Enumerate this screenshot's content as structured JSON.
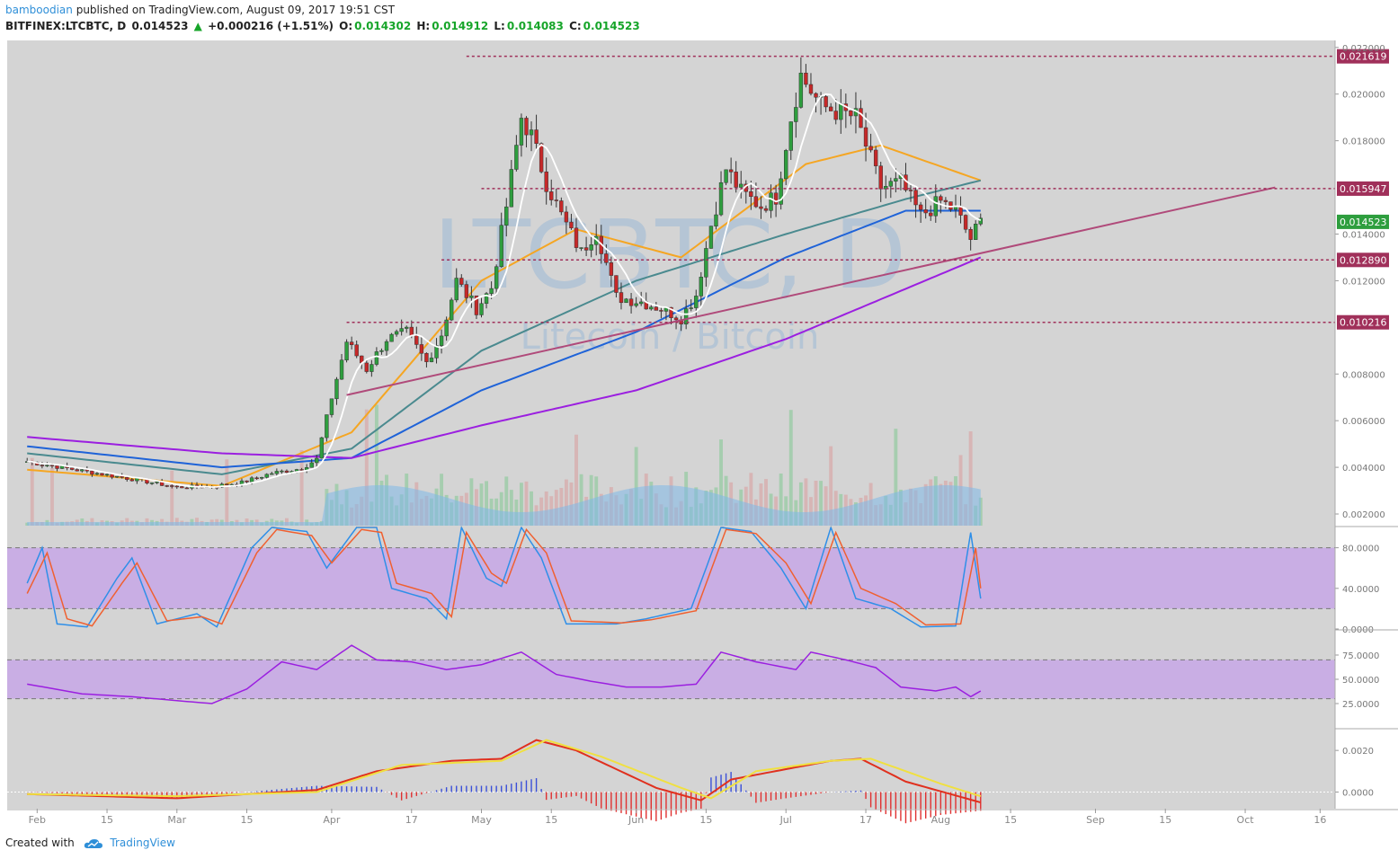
{
  "header": {
    "author": "bamboodian",
    "published_text": "published on TradingView.com, August 09, 2017 19:51 CST",
    "symbol": "BITFINEX:LTCBTC, D",
    "last": "0.014523",
    "change": "+0.000216 (+1.51%)",
    "o_label": "O:",
    "o_value": "0.014302",
    "h_label": "H:",
    "h_value": "0.014912",
    "l_label": "L:",
    "l_value": "0.014083",
    "c_label": "C:",
    "c_value": "0.014523"
  },
  "watermark": {
    "symbol": "LTCBTC, D",
    "name": "Litecoin / Bitcoin"
  },
  "footer": {
    "created_with": "Created with",
    "brand": "TradingView"
  },
  "colors": {
    "bull": "#2e9e3e",
    "bear": "#c62828",
    "sma_white": "#ffffff",
    "ema_orange": "#f5a623",
    "ma_teal": "#4a8a8f",
    "ma_blue": "#1f63d8",
    "ma_purple": "#9b1fe0",
    "trendline": "#b04a7a",
    "hline": "#a0305a",
    "stoch_k": "#2f8fe8",
    "stoch_d": "#f06030",
    "band": "#c7a7e6",
    "volume_ma": "#7db8e8",
    "macd_fast": "#e0301e",
    "macd_slow": "#f0e040"
  },
  "chart_data": [
    {
      "type": "candlestick",
      "title": "",
      "y_scale": "linear",
      "ylim": [
        0.0015,
        0.0223
      ],
      "y_ticks": [
        "0.022000",
        "0.020000",
        "0.018000",
        "0.014000",
        "0.012000",
        "0.008000",
        "0.006000",
        "0.004000",
        "0.002000"
      ],
      "x_ticks": [
        "Feb",
        "15",
        "Mar",
        "15",
        "Apr",
        "17",
        "May",
        "15",
        "Jun",
        "15",
        "Jul",
        "17",
        "Aug",
        "15",
        "Sep",
        "15",
        "Oct",
        "16"
      ],
      "horizontal_levels": [
        "0.021619",
        "0.015947",
        "0.012890",
        "0.010216"
      ],
      "last_price_label": "0.014523",
      "trendline": {
        "from": [
          "2017-04-04",
          0.0071
        ],
        "to": [
          "2017-10-07",
          0.016
        ]
      },
      "ohlc_dates": {
        "start": "2017-01-30",
        "end": "2017-08-09",
        "points": 192
      },
      "close_path_keys": [
        [
          "2017-01-30",
          0.00425
        ],
        [
          "2017-02-10",
          0.00385
        ],
        [
          "2017-02-20",
          0.0035
        ],
        [
          "2017-03-01",
          0.00315
        ],
        [
          "2017-03-08",
          0.00318
        ],
        [
          "2017-03-14",
          0.00335
        ],
        [
          "2017-03-20",
          0.00375
        ],
        [
          "2017-03-26",
          0.00395
        ],
        [
          "2017-03-29",
          0.00435
        ],
        [
          "2017-04-01",
          0.007
        ],
        [
          "2017-04-04",
          0.0094
        ],
        [
          "2017-04-08",
          0.0082
        ],
        [
          "2017-04-12",
          0.0095
        ],
        [
          "2017-04-16",
          0.0098
        ],
        [
          "2017-04-20",
          0.0085
        ],
        [
          "2017-04-23",
          0.0097
        ],
        [
          "2017-04-26",
          0.012
        ],
        [
          "2017-04-30",
          0.0108
        ],
        [
          "2017-05-03",
          0.0117
        ],
        [
          "2017-05-06",
          0.0152
        ],
        [
          "2017-05-09",
          0.019
        ],
        [
          "2017-05-11",
          0.0182
        ],
        [
          "2017-05-14",
          0.0162
        ],
        [
          "2017-05-17",
          0.0148
        ],
        [
          "2017-05-21",
          0.0132
        ],
        [
          "2017-05-24",
          0.0142
        ],
        [
          "2017-05-28",
          0.0113
        ],
        [
          "2017-06-02",
          0.0111
        ],
        [
          "2017-06-06",
          0.0108
        ],
        [
          "2017-06-10",
          0.0104
        ],
        [
          "2017-06-13",
          0.0114
        ],
        [
          "2017-06-16",
          0.0144
        ],
        [
          "2017-06-19",
          0.0168
        ],
        [
          "2017-06-22",
          0.0158
        ],
        [
          "2017-06-26",
          0.0152
        ],
        [
          "2017-06-29",
          0.0156
        ],
        [
          "2017-07-02",
          0.019
        ],
        [
          "2017-07-04",
          0.0208
        ],
        [
          "2017-07-08",
          0.0195
        ],
        [
          "2017-07-12",
          0.0192
        ],
        [
          "2017-07-15",
          0.019
        ],
        [
          "2017-07-17",
          0.0178
        ],
        [
          "2017-07-20",
          0.016
        ],
        [
          "2017-07-24",
          0.0162
        ],
        [
          "2017-07-28",
          0.0148
        ],
        [
          "2017-08-01",
          0.0154
        ],
        [
          "2017-08-04",
          0.015
        ],
        [
          "2017-08-07",
          0.0138
        ],
        [
          "2017-08-09",
          0.01452
        ]
      ],
      "ma_series": [
        {
          "name": "",
          "color_key": "ema_orange",
          "keys": [
            [
              "2017-01-30",
              0.0039
            ],
            [
              "2017-03-10",
              0.0032
            ],
            [
              "2017-04-05",
              0.0055
            ],
            [
              "2017-05-01",
              0.012
            ],
            [
              "2017-05-20",
              0.0142
            ],
            [
              "2017-06-10",
              0.013
            ],
            [
              "2017-07-05",
              0.017
            ],
            [
              "2017-07-20",
              0.0178
            ],
            [
              "2017-08-09",
              0.0163
            ]
          ]
        },
        {
          "name": "",
          "color_key": "ma_teal",
          "keys": [
            [
              "2017-01-30",
              0.0046
            ],
            [
              "2017-03-10",
              0.0037
            ],
            [
              "2017-04-05",
              0.0048
            ],
            [
              "2017-05-01",
              0.009
            ],
            [
              "2017-06-01",
              0.012
            ],
            [
              "2017-07-01",
              0.014
            ],
            [
              "2017-07-25",
              0.0155
            ],
            [
              "2017-08-09",
              0.0163
            ]
          ]
        },
        {
          "name": "",
          "color_key": "ma_blue",
          "keys": [
            [
              "2017-01-30",
              0.0049
            ],
            [
              "2017-03-10",
              0.004
            ],
            [
              "2017-04-05",
              0.0044
            ],
            [
              "2017-05-01",
              0.0073
            ],
            [
              "2017-06-01",
              0.0098
            ],
            [
              "2017-07-01",
              0.013
            ],
            [
              "2017-07-25",
              0.015
            ],
            [
              "2017-08-09",
              0.015
            ]
          ]
        },
        {
          "name": "",
          "color_key": "ma_purple",
          "keys": [
            [
              "2017-01-30",
              0.0053
            ],
            [
              "2017-03-10",
              0.0046
            ],
            [
              "2017-04-05",
              0.0044
            ],
            [
              "2017-05-01",
              0.0058
            ],
            [
              "2017-06-01",
              0.0073
            ],
            [
              "2017-07-01",
              0.0095
            ],
            [
              "2017-08-09",
              0.013
            ]
          ]
        }
      ]
    },
    {
      "type": "line",
      "title": "",
      "ylim": [
        0,
        100
      ],
      "y_ticks": [
        "80.0000",
        "40.0000",
        "0.0000"
      ],
      "band": [
        20,
        80
      ],
      "series": [
        {
          "name": "",
          "color_key": "stoch_k",
          "keys": [
            [
              "2017-01-30",
              45
            ],
            [
              "2017-02-02",
              80
            ],
            [
              "2017-02-05",
              5
            ],
            [
              "2017-02-11",
              2
            ],
            [
              "2017-02-17",
              50
            ],
            [
              "2017-02-20",
              70
            ],
            [
              "2017-02-25",
              5
            ],
            [
              "2017-03-05",
              15
            ],
            [
              "2017-03-09",
              2
            ],
            [
              "2017-03-16",
              80
            ],
            [
              "2017-03-20",
              100
            ],
            [
              "2017-03-27",
              96
            ],
            [
              "2017-03-31",
              60
            ],
            [
              "2017-04-06",
              100
            ],
            [
              "2017-04-10",
              100
            ],
            [
              "2017-04-13",
              40
            ],
            [
              "2017-04-20",
              30
            ],
            [
              "2017-04-24",
              10
            ],
            [
              "2017-04-27",
              100
            ],
            [
              "2017-05-02",
              50
            ],
            [
              "2017-05-05",
              42
            ],
            [
              "2017-05-09",
              100
            ],
            [
              "2017-05-13",
              70
            ],
            [
              "2017-05-18",
              5
            ],
            [
              "2017-05-28",
              5
            ],
            [
              "2017-06-03",
              10
            ],
            [
              "2017-06-12",
              20
            ],
            [
              "2017-06-18",
              100
            ],
            [
              "2017-06-24",
              96
            ],
            [
              "2017-06-30",
              60
            ],
            [
              "2017-07-05",
              20
            ],
            [
              "2017-07-10",
              100
            ],
            [
              "2017-07-15",
              30
            ],
            [
              "2017-07-22",
              20
            ],
            [
              "2017-07-28",
              2
            ],
            [
              "2017-08-04",
              3
            ],
            [
              "2017-08-07",
              95
            ],
            [
              "2017-08-09",
              30
            ]
          ]
        },
        {
          "name": "",
          "color_key": "stoch_d",
          "keys": [
            [
              "2017-01-30",
              35
            ],
            [
              "2017-02-03",
              75
            ],
            [
              "2017-02-07",
              10
            ],
            [
              "2017-02-12",
              3
            ],
            [
              "2017-02-18",
              45
            ],
            [
              "2017-02-21",
              65
            ],
            [
              "2017-02-27",
              8
            ],
            [
              "2017-03-06",
              12
            ],
            [
              "2017-03-10",
              5
            ],
            [
              "2017-03-17",
              75
            ],
            [
              "2017-03-21",
              98
            ],
            [
              "2017-03-28",
              92
            ],
            [
              "2017-04-01",
              65
            ],
            [
              "2017-04-07",
              98
            ],
            [
              "2017-04-11",
              95
            ],
            [
              "2017-04-14",
              45
            ],
            [
              "2017-04-21",
              35
            ],
            [
              "2017-04-25",
              12
            ],
            [
              "2017-04-28",
              95
            ],
            [
              "2017-05-03",
              55
            ],
            [
              "2017-05-06",
              45
            ],
            [
              "2017-05-10",
              98
            ],
            [
              "2017-05-14",
              75
            ],
            [
              "2017-05-19",
              8
            ],
            [
              "2017-05-29",
              6
            ],
            [
              "2017-06-04",
              9
            ],
            [
              "2017-06-13",
              18
            ],
            [
              "2017-06-19",
              98
            ],
            [
              "2017-06-25",
              94
            ],
            [
              "2017-07-01",
              65
            ],
            [
              "2017-07-06",
              25
            ],
            [
              "2017-07-11",
              95
            ],
            [
              "2017-07-16",
              40
            ],
            [
              "2017-07-23",
              25
            ],
            [
              "2017-07-29",
              4
            ],
            [
              "2017-08-05",
              5
            ],
            [
              "2017-08-08",
              80
            ],
            [
              "2017-08-09",
              40
            ]
          ]
        }
      ]
    },
    {
      "type": "line",
      "title": "",
      "ylim": [
        0,
        100
      ],
      "y_ticks": [
        "75.0000",
        "50.0000",
        "25.0000"
      ],
      "band": [
        30,
        70
      ],
      "series": [
        {
          "name": "",
          "color_key": "ma_purple",
          "keys": [
            [
              "2017-01-30",
              45
            ],
            [
              "2017-02-10",
              35
            ],
            [
              "2017-02-20",
              32
            ],
            [
              "2017-03-01",
              28
            ],
            [
              "2017-03-08",
              25
            ],
            [
              "2017-03-15",
              40
            ],
            [
              "2017-03-22",
              68
            ],
            [
              "2017-03-29",
              60
            ],
            [
              "2017-04-05",
              85
            ],
            [
              "2017-04-10",
              70
            ],
            [
              "2017-04-17",
              68
            ],
            [
              "2017-04-24",
              60
            ],
            [
              "2017-05-01",
              65
            ],
            [
              "2017-05-09",
              78
            ],
            [
              "2017-05-16",
              55
            ],
            [
              "2017-05-23",
              48
            ],
            [
              "2017-05-30",
              42
            ],
            [
              "2017-06-06",
              42
            ],
            [
              "2017-06-13",
              45
            ],
            [
              "2017-06-18",
              78
            ],
            [
              "2017-06-25",
              68
            ],
            [
              "2017-07-03",
              60
            ],
            [
              "2017-07-06",
              78
            ],
            [
              "2017-07-13",
              70
            ],
            [
              "2017-07-19",
              62
            ],
            [
              "2017-07-24",
              42
            ],
            [
              "2017-07-31",
              38
            ],
            [
              "2017-08-04",
              42
            ],
            [
              "2017-08-07",
              32
            ],
            [
              "2017-08-09",
              38
            ]
          ]
        }
      ]
    },
    {
      "type": "line",
      "title": "",
      "ylim": [
        -0.0008,
        0.003
      ],
      "y_ticks": [
        "0.0020",
        "0.0000"
      ],
      "series": [
        {
          "name": "",
          "color_key": "macd_fast",
          "keys": [
            [
              "2017-01-30",
              -0.0001
            ],
            [
              "2017-03-01",
              -0.0003
            ],
            [
              "2017-03-29",
              0.0001
            ],
            [
              "2017-04-10",
              0.001
            ],
            [
              "2017-04-25",
              0.0015
            ],
            [
              "2017-05-05",
              0.0016
            ],
            [
              "2017-05-12",
              0.0025
            ],
            [
              "2017-05-20",
              0.002
            ],
            [
              "2017-06-05",
              0.0002
            ],
            [
              "2017-06-14",
              -0.0004
            ],
            [
              "2017-06-20",
              0.0006
            ],
            [
              "2017-07-01",
              0.0011
            ],
            [
              "2017-07-10",
              0.0015
            ],
            [
              "2017-07-16",
              0.0016
            ],
            [
              "2017-07-25",
              0.0005
            ],
            [
              "2017-08-09",
              -0.0005
            ]
          ]
        },
        {
          "name": "",
          "color_key": "macd_slow",
          "keys": [
            [
              "2017-01-30",
              -0.0001
            ],
            [
              "2017-03-01",
              -0.0002
            ],
            [
              "2017-03-29",
              0.0
            ],
            [
              "2017-04-15",
              0.0013
            ],
            [
              "2017-05-05",
              0.0015
            ],
            [
              "2017-05-14",
              0.0025
            ],
            [
              "2017-05-25",
              0.0017
            ],
            [
              "2017-06-10",
              0.0002
            ],
            [
              "2017-06-16",
              -0.0003
            ],
            [
              "2017-06-25",
              0.001
            ],
            [
              "2017-07-10",
              0.0015
            ],
            [
              "2017-07-18",
              0.0016
            ],
            [
              "2017-08-01",
              0.0004
            ],
            [
              "2017-08-09",
              -0.0002
            ]
          ]
        }
      ]
    }
  ]
}
